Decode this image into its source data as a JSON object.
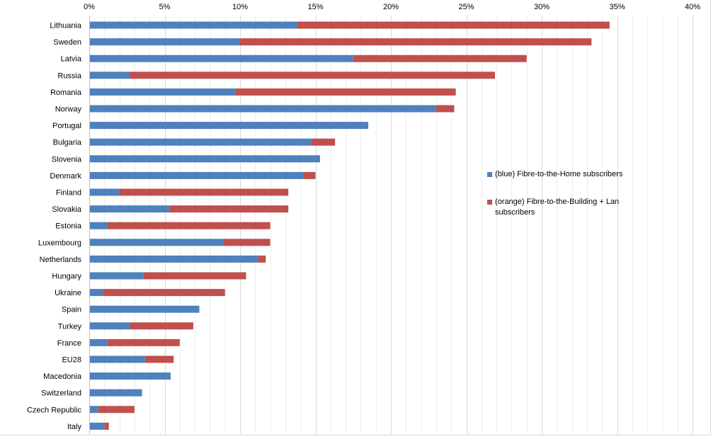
{
  "chart_data": {
    "type": "bar",
    "orientation": "horizontal",
    "stacked": true,
    "categories": [
      "Lithuania",
      "Sweden",
      "Latvia",
      "Russia",
      "Romania",
      "Norway",
      "Portugal",
      "Bulgaria",
      "Slovenia",
      "Denmark",
      "Finland",
      "Slovakia",
      "Estonia",
      "Luxembourg",
      "Netherlands",
      "Hungary",
      "Ukraine",
      "Spain",
      "Turkey",
      "France",
      "EU28",
      "Macedonia",
      "Switzerland",
      "Czech Republic",
      "Italy"
    ],
    "series": [
      {
        "name": "(blue) Fibre-to-the-Home subscribers",
        "color": "#4f81bd",
        "values": [
          13.8,
          10.0,
          17.5,
          2.7,
          9.7,
          23.0,
          18.5,
          14.7,
          15.3,
          14.2,
          2.0,
          5.3,
          1.2,
          8.9,
          11.2,
          3.6,
          0.9,
          7.3,
          2.7,
          1.2,
          3.7,
          5.4,
          3.5,
          0.6,
          1.0
        ]
      },
      {
        "name": "(orange) Fibre-to-the-Building + Lan subscribers",
        "color": "#c0504d",
        "values": [
          20.7,
          23.3,
          11.5,
          24.2,
          14.6,
          1.2,
          0.0,
          1.6,
          0.0,
          0.8,
          11.2,
          7.9,
          10.8,
          3.1,
          0.5,
          6.8,
          8.1,
          0.0,
          4.2,
          4.8,
          1.9,
          0.0,
          0.0,
          2.4,
          0.3
        ]
      }
    ],
    "x_ticks": [
      "0%",
      "5%",
      "10%",
      "15%",
      "20%",
      "25%",
      "30%",
      "35%",
      "40%"
    ],
    "xlim": [
      0,
      40
    ],
    "x_axis_position": "top",
    "grid": true,
    "legend_position": "right"
  }
}
